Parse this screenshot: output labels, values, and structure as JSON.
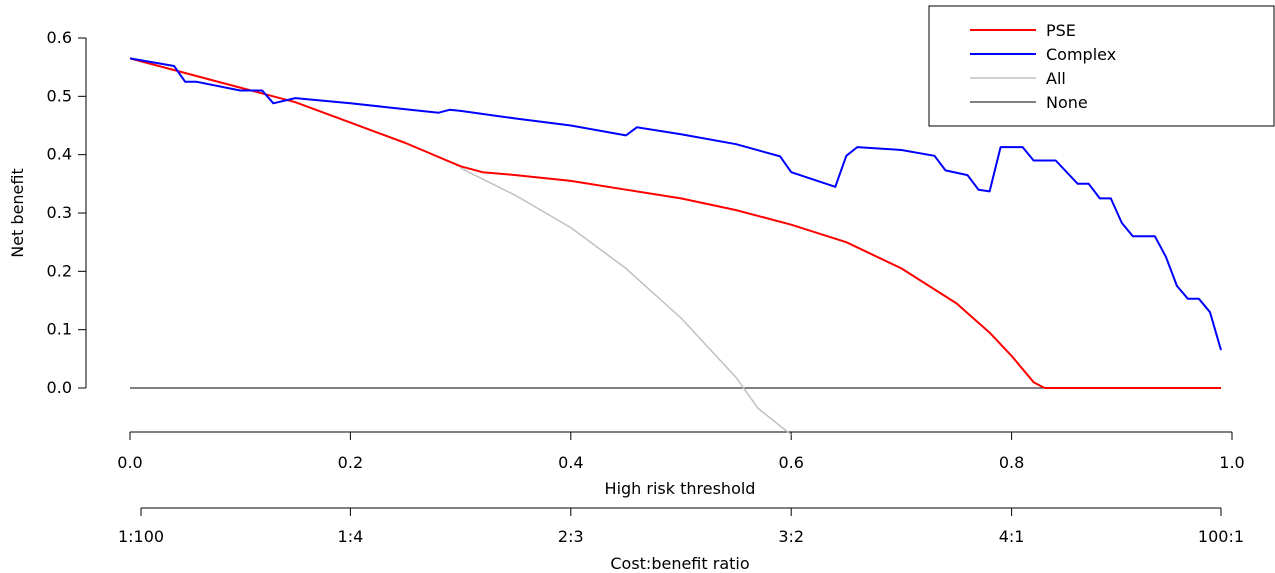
{
  "chart_data": {
    "type": "line",
    "title": "",
    "xlabel": "High risk threshold",
    "ylabel": "Net benefit",
    "secondary_xlabel": "Cost:benefit ratio",
    "xlim": [
      0,
      1
    ],
    "ylim": [
      -0.08,
      0.6
    ],
    "x_ticks": [
      "0.0",
      "0.2",
      "0.4",
      "0.6",
      "0.8",
      "1.0"
    ],
    "y_ticks": [
      "0.0",
      "0.1",
      "0.2",
      "0.3",
      "0.4",
      "0.5",
      "0.6"
    ],
    "secondary_ticks": [
      {
        "x": 0.01,
        "label": "1:100"
      },
      {
        "x": 0.2,
        "label": "1:4"
      },
      {
        "x": 0.4,
        "label": "2:3"
      },
      {
        "x": 0.6,
        "label": "3:2"
      },
      {
        "x": 0.8,
        "label": "4:1"
      },
      {
        "x": 0.99,
        "label": "100:1"
      }
    ],
    "grid": false,
    "legend_position": "top-right",
    "series": [
      {
        "name": "PSE",
        "color": "#ff0000",
        "width": 2,
        "x": [
          0.0,
          0.05,
          0.1,
          0.15,
          0.2,
          0.25,
          0.3,
          0.32,
          0.35,
          0.4,
          0.45,
          0.5,
          0.55,
          0.6,
          0.65,
          0.7,
          0.75,
          0.78,
          0.8,
          0.82,
          0.83,
          0.9,
          0.99
        ],
        "y": [
          0.565,
          0.54,
          0.515,
          0.49,
          0.455,
          0.42,
          0.38,
          0.37,
          0.365,
          0.355,
          0.34,
          0.325,
          0.305,
          0.28,
          0.25,
          0.205,
          0.145,
          0.095,
          0.055,
          0.01,
          0.0,
          0.0,
          0.0
        ]
      },
      {
        "name": "Complex",
        "color": "#0000ff",
        "width": 2,
        "x": [
          0.0,
          0.04,
          0.05,
          0.06,
          0.1,
          0.12,
          0.13,
          0.15,
          0.2,
          0.25,
          0.28,
          0.29,
          0.3,
          0.35,
          0.4,
          0.45,
          0.46,
          0.5,
          0.55,
          0.59,
          0.6,
          0.64,
          0.65,
          0.66,
          0.7,
          0.73,
          0.74,
          0.76,
          0.77,
          0.78,
          0.79,
          0.81,
          0.82,
          0.84,
          0.86,
          0.87,
          0.88,
          0.89,
          0.9,
          0.91,
          0.93,
          0.94,
          0.95,
          0.96,
          0.97,
          0.98,
          0.99
        ],
        "y": [
          0.565,
          0.552,
          0.525,
          0.525,
          0.51,
          0.51,
          0.488,
          0.497,
          0.488,
          0.478,
          0.472,
          0.477,
          0.475,
          0.462,
          0.45,
          0.433,
          0.447,
          0.435,
          0.418,
          0.397,
          0.37,
          0.345,
          0.398,
          0.413,
          0.408,
          0.398,
          0.373,
          0.365,
          0.34,
          0.337,
          0.413,
          0.413,
          0.39,
          0.39,
          0.35,
          0.35,
          0.325,
          0.325,
          0.283,
          0.26,
          0.26,
          0.225,
          0.175,
          0.153,
          0.153,
          0.13,
          0.065
        ]
      },
      {
        "name": "All",
        "color": "#c0c0c0",
        "width": 1.5,
        "x": [
          0.3,
          0.35,
          0.4,
          0.45,
          0.5,
          0.55,
          0.57,
          0.6
        ],
        "y": [
          0.377,
          0.33,
          0.275,
          0.205,
          0.12,
          0.018,
          -0.035,
          -0.08
        ]
      },
      {
        "name": "None",
        "color": "#000000",
        "width": 1,
        "x": [
          0.0,
          0.99
        ],
        "y": [
          0.0,
          0.0
        ]
      }
    ]
  }
}
